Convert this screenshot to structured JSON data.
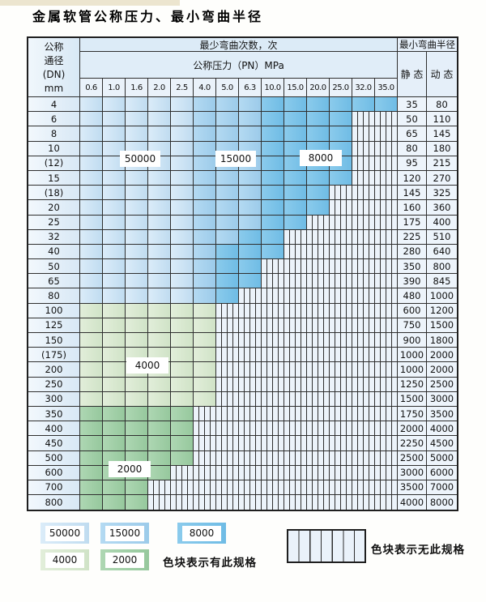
{
  "title": "金属软管公称压力、最小弯曲半径",
  "table": {
    "corner": {
      "line1": "公称",
      "line2": "通径",
      "line3": "(DN)",
      "line4": "mm"
    },
    "cycles_header": "最少弯曲次数，次",
    "pressure_header": "公称压力（PN）MPa",
    "radius_header": "最小弯曲半径",
    "static_header": "静 态",
    "dynamic_header": "动 态",
    "pressures": [
      "0.6",
      "1.0",
      "1.6",
      "2.0",
      "2.5",
      "4.0",
      "5.0",
      "6.3",
      "10.0",
      "15.0",
      "20.0",
      "25.0",
      "32.0",
      "35.0"
    ],
    "band_values": {
      "c50": "50000",
      "c15": "15000",
      "c8": "8000",
      "c4": "4000",
      "c2": "2000"
    },
    "rows": [
      {
        "dn": "4",
        "bands": [
          5,
          3,
          6,
          0,
          0
        ],
        "static": "35",
        "dynamic": "80"
      },
      {
        "dn": "6",
        "bands": [
          5,
          3,
          4,
          0,
          0
        ],
        "static": "50",
        "dynamic": "110"
      },
      {
        "dn": "8",
        "bands": [
          5,
          3,
          4,
          0,
          0
        ],
        "static": "65",
        "dynamic": "145"
      },
      {
        "dn": "10",
        "bands": [
          5,
          3,
          4,
          0,
          0
        ],
        "static": "80",
        "dynamic": "180"
      },
      {
        "dn": "(12)",
        "bands": [
          5,
          3,
          4,
          0,
          0
        ],
        "static": "95",
        "dynamic": "215"
      },
      {
        "dn": "15",
        "bands": [
          5,
          3,
          4,
          0,
          0
        ],
        "static": "120",
        "dynamic": "270"
      },
      {
        "dn": "(18)",
        "bands": [
          5,
          3,
          3,
          0,
          0
        ],
        "static": "145",
        "dynamic": "325"
      },
      {
        "dn": "20",
        "bands": [
          5,
          3,
          3,
          0,
          0
        ],
        "static": "160",
        "dynamic": "360"
      },
      {
        "dn": "25",
        "bands": [
          5,
          3,
          2,
          0,
          0
        ],
        "static": "175",
        "dynamic": "400"
      },
      {
        "dn": "32",
        "bands": [
          5,
          2,
          2,
          0,
          0
        ],
        "static": "225",
        "dynamic": "510"
      },
      {
        "dn": "40",
        "bands": [
          5,
          1,
          3,
          0,
          0
        ],
        "static": "280",
        "dynamic": "640"
      },
      {
        "dn": "50",
        "bands": [
          5,
          1,
          2,
          0,
          0
        ],
        "static": "350",
        "dynamic": "800"
      },
      {
        "dn": "65",
        "bands": [
          5,
          1,
          2,
          0,
          0
        ],
        "static": "390",
        "dynamic": "845"
      },
      {
        "dn": "80",
        "bands": [
          5,
          1,
          1,
          0,
          0
        ],
        "static": "480",
        "dynamic": "1000"
      },
      {
        "dn": "100",
        "bands": [
          0,
          0,
          0,
          6,
          0
        ],
        "static": "600",
        "dynamic": "1200"
      },
      {
        "dn": "125",
        "bands": [
          0,
          0,
          0,
          6,
          0
        ],
        "static": "750",
        "dynamic": "1500"
      },
      {
        "dn": "150",
        "bands": [
          0,
          0,
          0,
          6,
          0
        ],
        "static": "900",
        "dynamic": "1800"
      },
      {
        "dn": "(175)",
        "bands": [
          0,
          0,
          0,
          6,
          0
        ],
        "static": "1000",
        "dynamic": "2000"
      },
      {
        "dn": "200",
        "bands": [
          0,
          0,
          0,
          6,
          0
        ],
        "static": "1000",
        "dynamic": "2000"
      },
      {
        "dn": "250",
        "bands": [
          0,
          0,
          0,
          6,
          0
        ],
        "static": "1250",
        "dynamic": "2500"
      },
      {
        "dn": "300",
        "bands": [
          0,
          0,
          0,
          6,
          0
        ],
        "static": "1500",
        "dynamic": "3000"
      },
      {
        "dn": "350",
        "bands": [
          0,
          0,
          0,
          0,
          5
        ],
        "static": "1750",
        "dynamic": "3500"
      },
      {
        "dn": "400",
        "bands": [
          0,
          0,
          0,
          0,
          5
        ],
        "static": "2000",
        "dynamic": "4000"
      },
      {
        "dn": "450",
        "bands": [
          0,
          0,
          0,
          0,
          5
        ],
        "static": "2250",
        "dynamic": "4500"
      },
      {
        "dn": "500",
        "bands": [
          0,
          0,
          0,
          0,
          5
        ],
        "static": "2500",
        "dynamic": "5000"
      },
      {
        "dn": "600",
        "bands": [
          0,
          0,
          0,
          0,
          4
        ],
        "static": "3000",
        "dynamic": "6000"
      },
      {
        "dn": "700",
        "bands": [
          0,
          0,
          0,
          0,
          3
        ],
        "static": "3500",
        "dynamic": "7000"
      },
      {
        "dn": "800",
        "bands": [
          0,
          0,
          0,
          0,
          3
        ],
        "static": "4000",
        "dynamic": "8000"
      }
    ]
  },
  "overlays": [
    {
      "value": "50000"
    },
    {
      "value": "15000"
    },
    {
      "value": "8000"
    },
    {
      "value": "4000"
    },
    {
      "value": "2000"
    }
  ],
  "legend": {
    "items": [
      {
        "label": "50000",
        "color_key": "c50"
      },
      {
        "label": "15000",
        "color_key": "c15"
      },
      {
        "label": "8000",
        "color_key": "c8"
      },
      {
        "label": "4000",
        "color_key": "c4"
      },
      {
        "label": "2000",
        "color_key": "c2"
      }
    ],
    "has_spec_note": "色块表示有此规格",
    "no_spec_note": "色块表示无此规格"
  },
  "colors": {
    "blue_50000": "#cde4f5",
    "blue_15000": "#a6d2ee",
    "blue_8000": "#7cc3e9",
    "green_4000": "#d9e9d2",
    "green_2000": "#9ecfa5",
    "hatch_bg": "#ecf3fa",
    "border": "#2f2f2f"
  }
}
